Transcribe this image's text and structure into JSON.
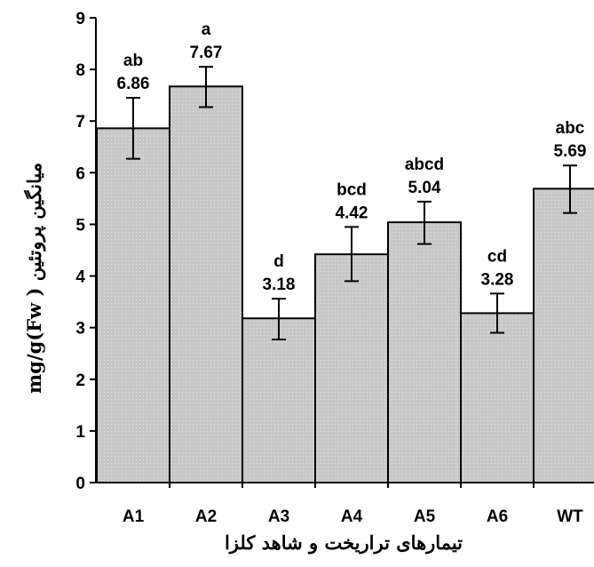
{
  "chart_data": {
    "type": "bar",
    "categories": [
      "A1",
      "A2",
      "A3",
      "A4",
      "A5",
      "A6",
      "WT"
    ],
    "values": [
      6.86,
      7.67,
      3.18,
      4.42,
      5.04,
      3.28,
      5.69
    ],
    "value_labels": [
      "6.86",
      "7.67",
      "3.18",
      "4.42",
      "5.04",
      "3.28",
      "5.69"
    ],
    "group_letters": [
      "ab",
      "a",
      "d",
      "bcd",
      "abcd",
      "cd",
      "abc"
    ],
    "error_lower": [
      6.27,
      7.27,
      2.77,
      3.9,
      4.62,
      2.9,
      5.22
    ],
    "error_upper": [
      7.45,
      8.05,
      3.56,
      4.95,
      5.44,
      3.66,
      6.14
    ],
    "yticks": [
      "0",
      "1",
      "2",
      "3",
      "4",
      "5",
      "6",
      "7",
      "8",
      "9"
    ],
    "ylim": [
      0,
      9
    ],
    "xlabel": "تیمارهای تراریخت و شاهد کلزا",
    "ylabel": "mg/g(Fw ) میانگین پروتئین",
    "colors": {
      "bar_fill": "#c8c8c8",
      "bar_stroke": "#000000",
      "axis": "#000000"
    },
    "grid": false
  }
}
